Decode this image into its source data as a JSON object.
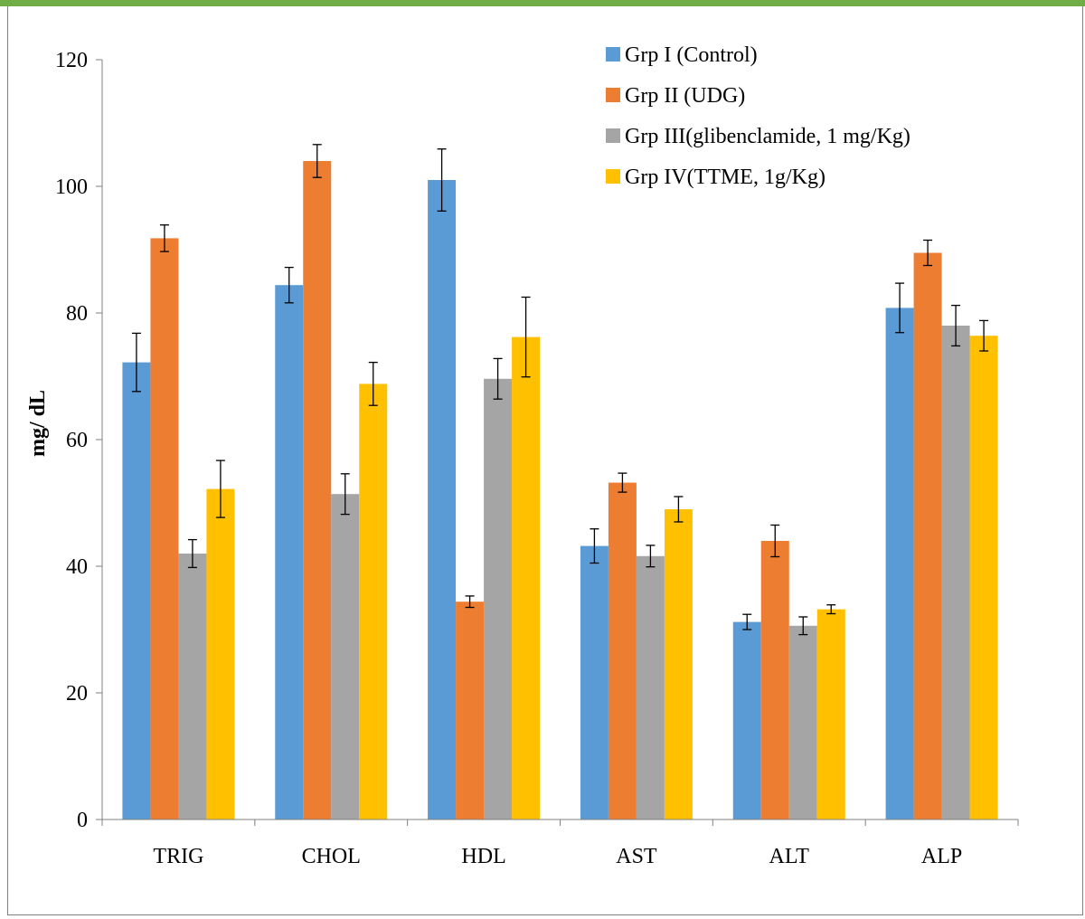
{
  "chart_data": {
    "type": "bar",
    "title": "",
    "xlabel": "",
    "ylabel": "mg/ dL",
    "ylim": [
      0,
      120
    ],
    "yticks": [
      0,
      20,
      40,
      60,
      80,
      100,
      120
    ],
    "grid": false,
    "legend_position": "top-right",
    "categories": [
      "TRIG",
      "CHOL",
      "HDL",
      "AST",
      "ALT",
      "ALP"
    ],
    "series": [
      {
        "name": "Grp I (Control)",
        "color": "#5b9bd5",
        "values": [
          72.2,
          84.4,
          101.0,
          43.2,
          31.2,
          80.8
        ],
        "errors": [
          4.6,
          2.8,
          4.9,
          2.7,
          1.2,
          3.9
        ]
      },
      {
        "name": "Grp II (UDG)",
        "color": "#ed7d31",
        "values": [
          91.8,
          104.0,
          34.4,
          53.2,
          44.0,
          89.5
        ],
        "errors": [
          2.1,
          2.6,
          0.9,
          1.5,
          2.5,
          2.0
        ]
      },
      {
        "name": "Grp III(glibenclamide, 1 mg/Kg)",
        "color": "#a5a5a5",
        "values": [
          42.0,
          51.4,
          69.6,
          41.6,
          30.6,
          78.0
        ],
        "errors": [
          2.2,
          3.2,
          3.2,
          1.7,
          1.4,
          3.2
        ]
      },
      {
        "name": "Grp IV(TTME, 1g/Kg)",
        "color": "#ffc000",
        "values": [
          52.2,
          68.8,
          76.2,
          49.0,
          33.2,
          76.4
        ],
        "errors": [
          4.5,
          3.4,
          6.3,
          2.0,
          0.7,
          2.4
        ]
      }
    ]
  }
}
